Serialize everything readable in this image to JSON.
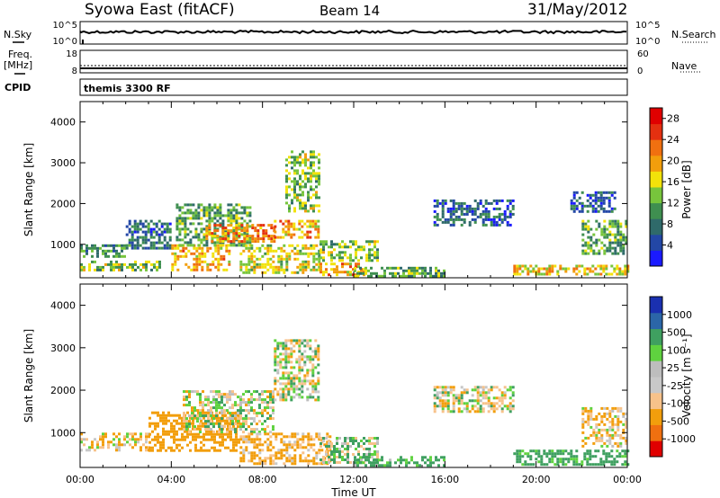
{
  "header": {
    "station": "Syowa East (fitACF)",
    "beam": "Beam 14",
    "date": "31/May/2012"
  },
  "status_panels": {
    "nsky_label": "N.Sky",
    "nsky_ticks": [
      "10^5",
      "10^0"
    ],
    "nsearch_label": "N.Search",
    "nsearch_ticks": [
      "10^5",
      "10^0"
    ],
    "freq_label_top": "Freq.",
    "freq_label_unit": "[MHz]",
    "freq_ticks": [
      "18",
      "8"
    ],
    "nave_label": "Nave",
    "nave_ticks": [
      "60",
      "0"
    ],
    "cpid_label": "CPID",
    "cpid_value": "themis 3300 RF"
  },
  "colors": {
    "power_scale": [
      "#1a1aff",
      "#2347a6",
      "#2f6a6a",
      "#3f8f50",
      "#77c53c",
      "#f2e20a",
      "#f29e0c",
      "#f07010",
      "#e43010",
      "#e00000"
    ],
    "velocity_scale": [
      "#e00000",
      "#f07010",
      "#f29e0c",
      "#f7c28a",
      "#c8c8c8",
      "#bdbdbd",
      "#5fd23f",
      "#3fa060",
      "#2b66a8",
      "#1a30b0"
    ]
  },
  "chart_data": [
    {
      "type": "heatmap",
      "name": "power",
      "ylabel": "Slant Range [km]",
      "yticks": [
        1000,
        2000,
        3000,
        4000
      ],
      "ylim": [
        180,
        4500
      ],
      "xlim": [
        0,
        24
      ],
      "colorbar_label": "Power [dB]",
      "colorbar_ticks": [
        4,
        8,
        12,
        16,
        20,
        24,
        28
      ],
      "colorbar_range": [
        0,
        30
      ],
      "regions": [
        {
          "x": [
            0.0,
            2.0
          ],
          "y": [
            700,
            1000
          ],
          "value": 8
        },
        {
          "x": [
            0.0,
            3.5
          ],
          "y": [
            350,
            600
          ],
          "value": 12
        },
        {
          "x": [
            2.0,
            4.0
          ],
          "y": [
            900,
            1600
          ],
          "value": 6
        },
        {
          "x": [
            4.0,
            6.5
          ],
          "y": [
            400,
            1000
          ],
          "value": 18
        },
        {
          "x": [
            4.2,
            7.5
          ],
          "y": [
            1000,
            2000
          ],
          "value": 10
        },
        {
          "x": [
            5.5,
            8.5
          ],
          "y": [
            1100,
            1500
          ],
          "value": 20
        },
        {
          "x": [
            7.0,
            10.5
          ],
          "y": [
            300,
            1000
          ],
          "value": 14
        },
        {
          "x": [
            8.5,
            10.5
          ],
          "y": [
            1200,
            1600
          ],
          "value": 18
        },
        {
          "x": [
            9.0,
            10.5
          ],
          "y": [
            1800,
            3300
          ],
          "value": 12
        },
        {
          "x": [
            10.5,
            12.5
          ],
          "y": [
            250,
            550
          ],
          "value": 18
        },
        {
          "x": [
            10.5,
            13.0
          ],
          "y": [
            600,
            1100
          ],
          "value": 12
        },
        {
          "x": [
            12.0,
            16.0
          ],
          "y": [
            250,
            450
          ],
          "value": 10
        },
        {
          "x": [
            15.5,
            19.0
          ],
          "y": [
            1500,
            2100
          ],
          "value": 5
        },
        {
          "x": [
            19.0,
            24.0
          ],
          "y": [
            250,
            500
          ],
          "value": 16
        },
        {
          "x": [
            22.0,
            24.0
          ],
          "y": [
            800,
            1600
          ],
          "value": 10
        },
        {
          "x": [
            21.5,
            23.5
          ],
          "y": [
            1800,
            2300
          ],
          "value": 5
        }
      ]
    },
    {
      "type": "heatmap",
      "name": "velocity",
      "ylabel": "Slant Range [km]",
      "yticks": [
        1000,
        2000,
        3000,
        4000
      ],
      "ylim": [
        180,
        4500
      ],
      "xlim": [
        0,
        24
      ],
      "xlabel": "Time UT",
      "xticks": [
        "00:00",
        "04:00",
        "08:00",
        "12:00",
        "16:00",
        "20:00",
        "00:00"
      ],
      "colorbar_label": "Velocity [m s⁻¹]",
      "colorbar_ticks": [
        1000,
        500,
        100,
        25,
        -25,
        -100,
        -500,
        -1000
      ],
      "regions": [
        {
          "x": [
            0.0,
            3.0
          ],
          "y": [
            600,
            1000
          ],
          "value": -80
        },
        {
          "x": [
            3.0,
            7.0
          ],
          "y": [
            600,
            1500
          ],
          "value": -300
        },
        {
          "x": [
            4.5,
            8.5
          ],
          "y": [
            1000,
            2000
          ],
          "value": 10
        },
        {
          "x": [
            7.0,
            11.0
          ],
          "y": [
            300,
            1000
          ],
          "value": -150
        },
        {
          "x": [
            8.5,
            10.5
          ],
          "y": [
            1800,
            3200
          ],
          "value": 0
        },
        {
          "x": [
            10.5,
            13.0
          ],
          "y": [
            300,
            900
          ],
          "value": 80
        },
        {
          "x": [
            12.0,
            16.0
          ],
          "y": [
            250,
            450
          ],
          "value": 150
        },
        {
          "x": [
            15.5,
            19.0
          ],
          "y": [
            1500,
            2100
          ],
          "value": 0
        },
        {
          "x": [
            19.0,
            24.0
          ],
          "y": [
            250,
            600
          ],
          "value": 200
        },
        {
          "x": [
            22.0,
            24.0
          ],
          "y": [
            700,
            1600
          ],
          "value": -100
        }
      ]
    }
  ]
}
